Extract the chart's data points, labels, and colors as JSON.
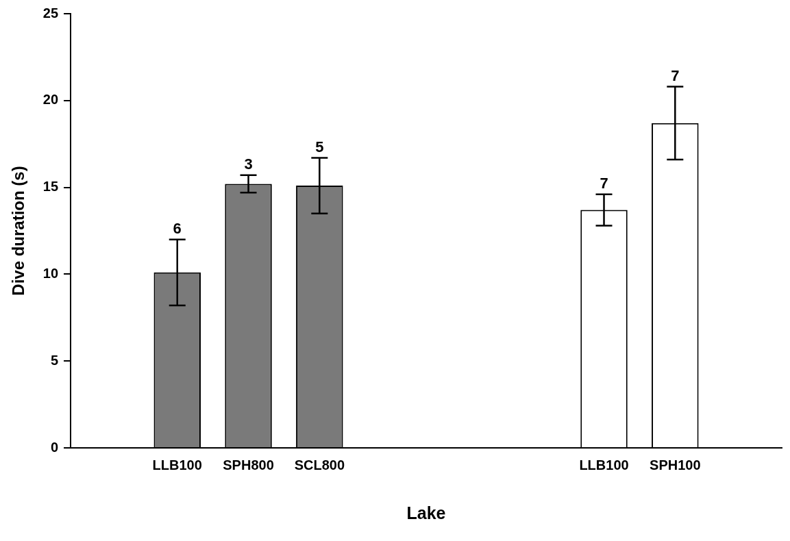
{
  "chart_data": {
    "type": "bar",
    "xlabel": "Lake",
    "ylabel": "Dive duration (s)",
    "categories": [
      null,
      "LLB100",
      "SPH800",
      "SCL800",
      null,
      null,
      null,
      "LLB100",
      "SPH100",
      null
    ],
    "values": [
      null,
      10.1,
      15.2,
      15.1,
      null,
      null,
      null,
      13.7,
      18.7,
      null
    ],
    "colors": [
      "#ffffff",
      "#7a7a7a",
      "#7a7a7a",
      "#7a7a7a",
      "#ffffff",
      "#ffffff",
      "#ffffff",
      "#ffffff",
      "#ffffff",
      "#ffffff"
    ],
    "errors": [
      null,
      1.9,
      0.5,
      1.6,
      null,
      null,
      null,
      0.9,
      2.1,
      null
    ],
    "annotations": [
      {
        "text": "6",
        "y": 12.0
      },
      {
        "text": "3",
        "y": 15.7
      },
      {
        "text": "5",
        "y": 16.7
      },
      {
        "text": "7",
        "y": 14.6
      },
      {
        "text": "7",
        "y": 20.8
      }
    ],
    "ylim": [
      0,
      25
    ],
    "yticks": [
      0,
      5,
      10,
      15,
      20,
      25
    ],
    "grid": false,
    "legend": false
  }
}
